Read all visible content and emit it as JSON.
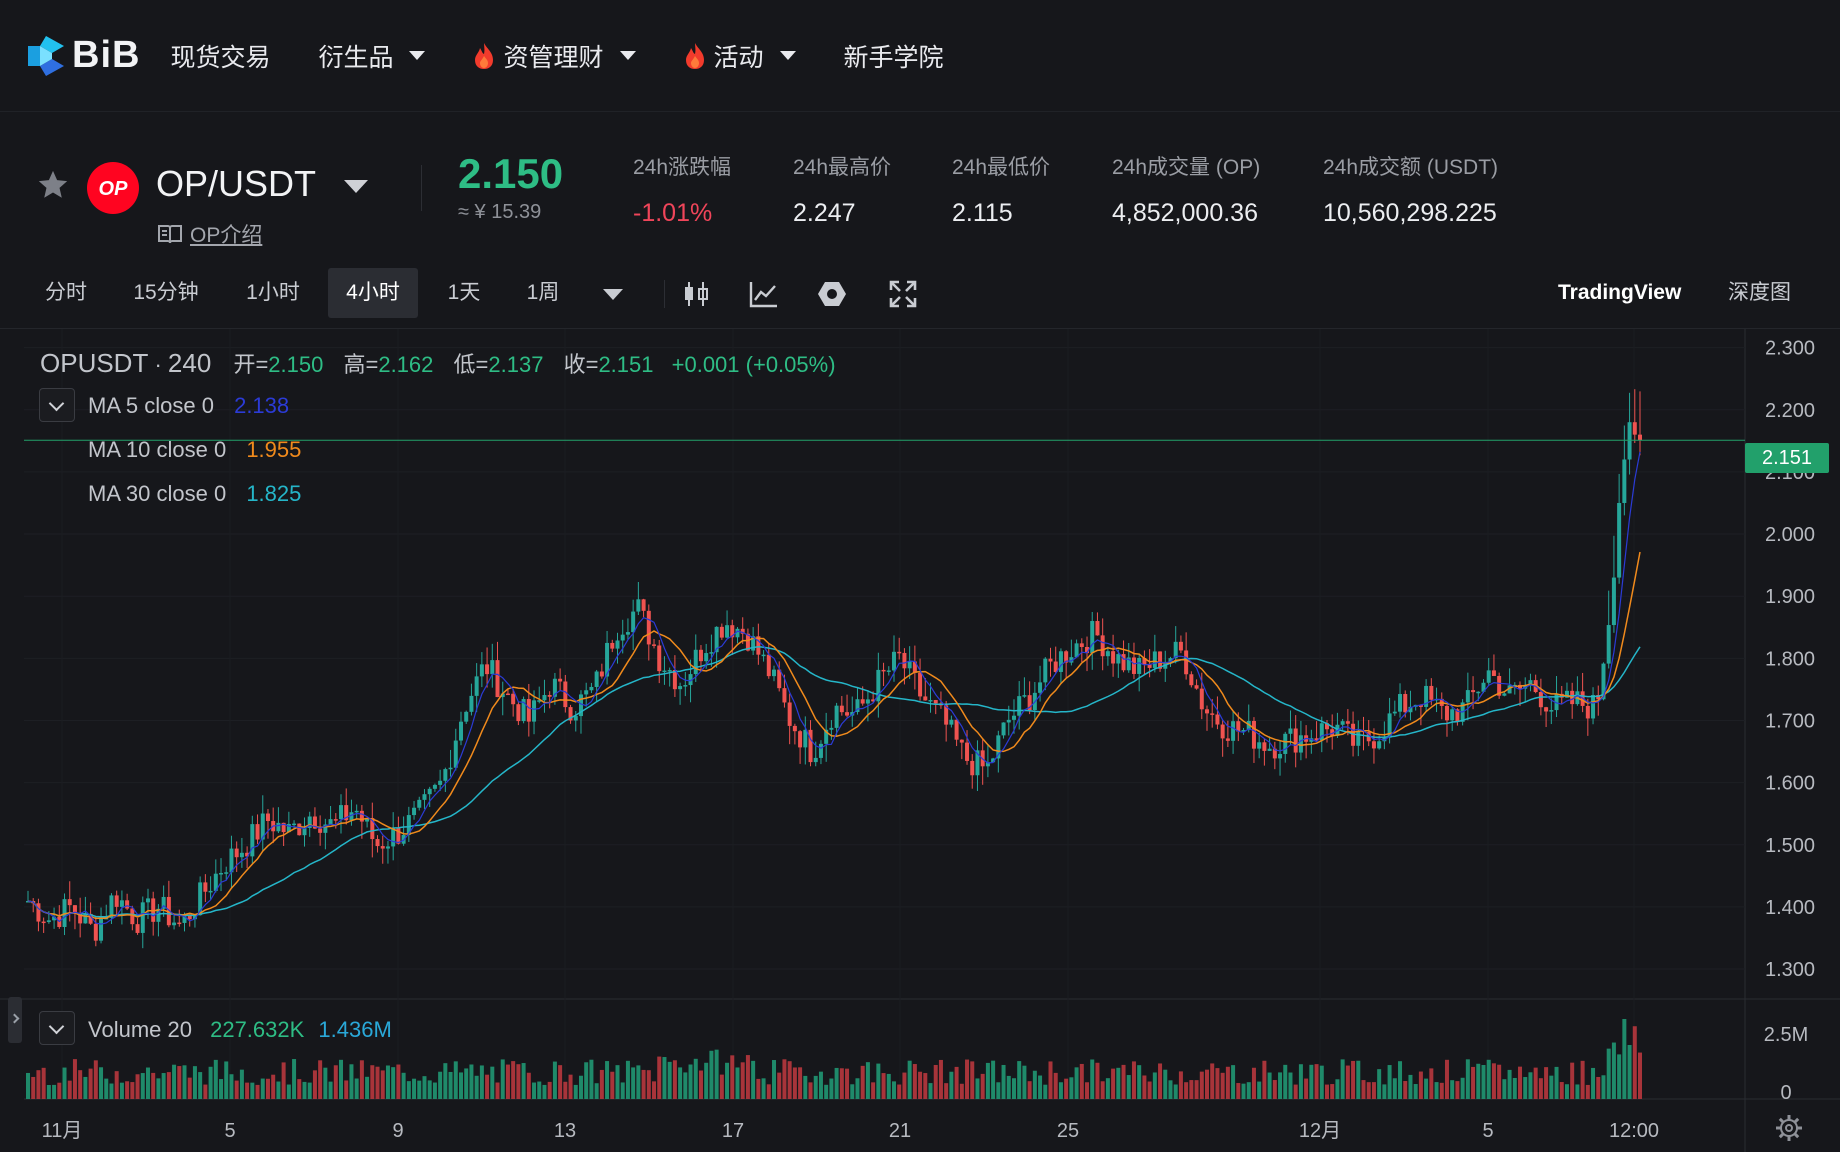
{
  "nav": {
    "logo_text": "BiB",
    "items": [
      {
        "label": "现货交易",
        "dropdown": false,
        "hot": false
      },
      {
        "label": "衍生品",
        "dropdown": true,
        "hot": false
      },
      {
        "label": "资管理财",
        "dropdown": true,
        "hot": true
      },
      {
        "label": "活动",
        "dropdown": true,
        "hot": true
      },
      {
        "label": "新手学院",
        "dropdown": false,
        "hot": false
      }
    ]
  },
  "ticker": {
    "badge": "OP",
    "pair": "OP/USDT",
    "intro_link": "OP介绍",
    "last_price": "2.150",
    "cny_price": "≈ ¥ 15.39",
    "stats": [
      {
        "label": "24h涨跌幅",
        "value": "-1.01%",
        "negative": true
      },
      {
        "label": "24h最高价",
        "value": "2.247",
        "negative": false
      },
      {
        "label": "24h最低价",
        "value": "2.115",
        "negative": false
      },
      {
        "label": "24h成交量 (OP)",
        "value": "4,852,000.36",
        "negative": false
      },
      {
        "label": "24h成交额 (USDT)",
        "value": "10,560,298.225",
        "negative": false
      }
    ]
  },
  "toolbar": {
    "timeframes": [
      "分时",
      "15分钟",
      "1小时",
      "4小时",
      "1天",
      "1周"
    ],
    "active_timeframe": "4小时",
    "views": [
      "TradingView",
      "深度图"
    ],
    "active_view": "TradingView",
    "icons": [
      "candlestick-icon",
      "line-chart-icon",
      "settings-hexagon-icon",
      "fullscreen-icon"
    ]
  },
  "chart_legend": {
    "symbol": "OPUSDT",
    "dot": "·",
    "interval": "240",
    "ohlc": [
      {
        "k": "开=",
        "v": "2.150"
      },
      {
        "k": "高=",
        "v": "2.162"
      },
      {
        "k": "低=",
        "v": "2.137"
      },
      {
        "k": "收=",
        "v": "2.151"
      }
    ],
    "change": "+0.001 (+0.05%)",
    "ma": [
      {
        "label": "MA 5 close 0",
        "value": "2.138",
        "color": "#2b3bd6"
      },
      {
        "label": "MA 10 close 0",
        "value": "1.955",
        "color": "#f08a1c"
      },
      {
        "label": "MA 30 close 0",
        "value": "1.825",
        "color": "#25b6c9"
      }
    ],
    "volume_label": "Volume 20",
    "volume_values": [
      {
        "v": "227.632K",
        "color": "#2ebd85"
      },
      {
        "v": "1.436M",
        "color": "#2aa8d8"
      }
    ],
    "last_price_tag": "2.151"
  },
  "chart_data": {
    "type": "candlestick",
    "symbol": "OPUSDT",
    "interval": "240",
    "price_axis_ticks": [
      "2.300",
      "2.200",
      "2.100",
      "2.000",
      "1.900",
      "1.800",
      "1.700",
      "1.600",
      "1.500",
      "1.400",
      "1.300"
    ],
    "price_range": [
      1.255,
      2.33
    ],
    "volume_axis_ticks": [
      "2.5M",
      "0"
    ],
    "time_axis_ticks": [
      "11月",
      "5",
      "9",
      "13",
      "17",
      "21",
      "25",
      "12月",
      "5",
      "12:00"
    ],
    "last_price": 2.151,
    "close_anchors": [
      1.41,
      1.38,
      1.4,
      1.36,
      1.42,
      1.38,
      1.4,
      1.37,
      1.42,
      1.47,
      1.5,
      1.54,
      1.52,
      1.55,
      1.53,
      1.56,
      1.5,
      1.52,
      1.55,
      1.6,
      1.72,
      1.79,
      1.74,
      1.7,
      1.76,
      1.72,
      1.75,
      1.85,
      1.88,
      1.8,
      1.76,
      1.82,
      1.86,
      1.84,
      1.78,
      1.7,
      1.65,
      1.72,
      1.71,
      1.76,
      1.8,
      1.74,
      1.7,
      1.64,
      1.62,
      1.7,
      1.74,
      1.79,
      1.82,
      1.84,
      1.8,
      1.78,
      1.8,
      1.81,
      1.72,
      1.69,
      1.68,
      1.66,
      1.67,
      1.68,
      1.69,
      1.66,
      1.68,
      1.72,
      1.74,
      1.71,
      1.72,
      1.78,
      1.74,
      1.76,
      1.72,
      1.73,
      1.72,
      1.98,
      2.15
    ]
  },
  "volume_scale_label": "2.5M"
}
